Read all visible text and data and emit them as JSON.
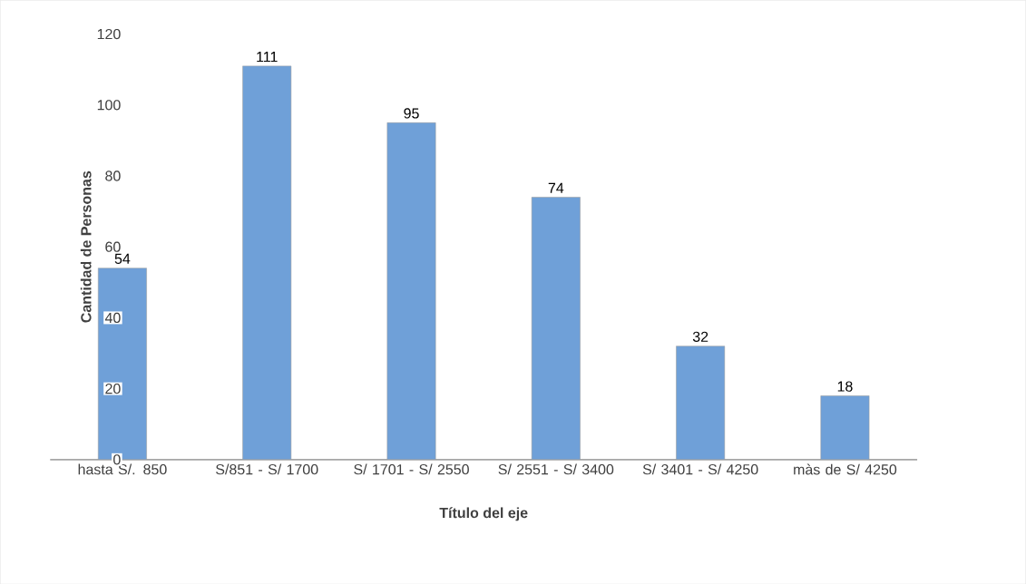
{
  "chart_data": {
    "type": "bar",
    "categories": [
      "hasta S/. 850",
      "S/851 - S/ 1700",
      "S/ 1701 - S/ 2550",
      "S/ 2551 - S/ 3400",
      "S/ 3401 - S/ 4250",
      "màs de S/ 4250"
    ],
    "values": [
      54,
      111,
      95,
      74,
      32,
      18
    ],
    "color": "#6fa0d8",
    "xlabel": "Título del eje",
    "ylabel": "Cantidad de Personas",
    "ylim": [
      0,
      120
    ],
    "yticks": [
      0,
      20,
      40,
      60,
      80,
      100,
      120
    ],
    "data_labels": true
  }
}
